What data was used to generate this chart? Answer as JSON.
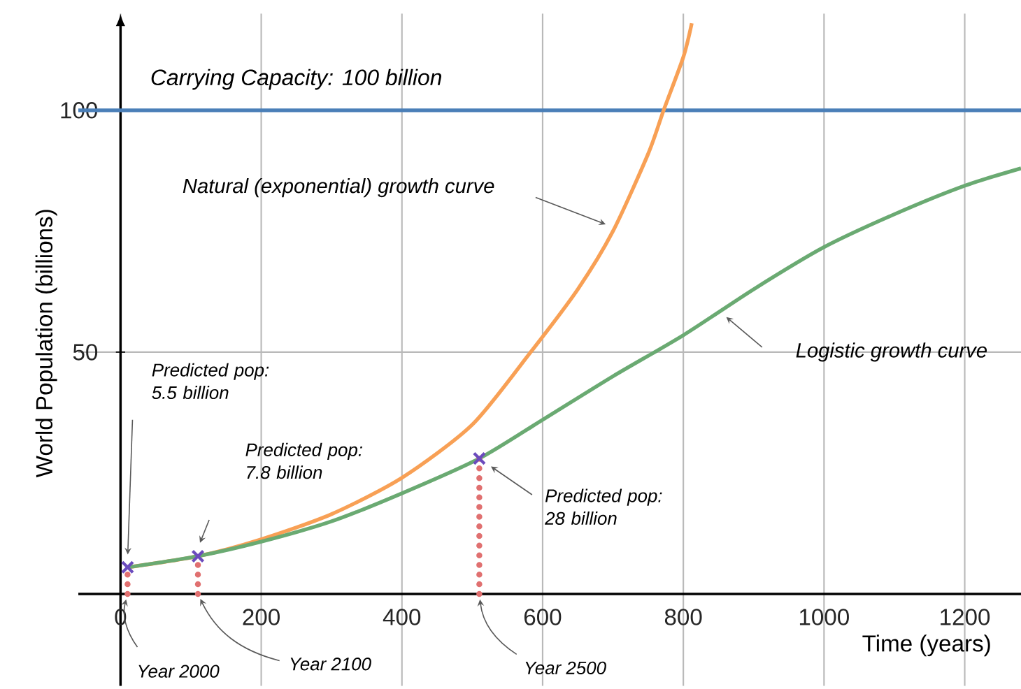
{
  "chart_data": {
    "type": "line",
    "xlabel": "Time (years)",
    "ylabel": "World Population (billions)",
    "xlim": [
      -60,
      1280
    ],
    "ylim": [
      -19,
      120
    ],
    "xticks": [
      0,
      200,
      400,
      600,
      800,
      1000,
      1200
    ],
    "yticks": [
      50,
      100
    ],
    "grid": true,
    "ref_lines": [
      {
        "axis": "y",
        "value": 100,
        "label": "Carrying Capacity: 100 billion",
        "color": "#4a7fb8"
      }
    ],
    "series": [
      {
        "type": "line",
        "color": "#f8a055",
        "x": [
          10,
          110,
          200,
          300,
          400,
          500,
          583,
          650,
          700,
          750,
          772,
          800,
          812
        ],
        "values": [
          5.5,
          7.8,
          11.3,
          16.5,
          24,
          35,
          50,
          63,
          75,
          91,
          100,
          111,
          118
        ]
      },
      {
        "type": "line",
        "color": "#6aaa72",
        "x": [
          10,
          110,
          200,
          300,
          400,
          510,
          600,
          700,
          800,
          900,
          1000,
          1100,
          1200,
          1280
        ],
        "values": [
          5.5,
          7.8,
          10.8,
          15,
          20.8,
          28,
          36,
          45,
          53.5,
          63,
          71.7,
          78.5,
          84.4,
          88
        ]
      },
      {
        "type": "lollipop",
        "color": "#e07070",
        "colors": [
          "#6b4bbd",
          "#6b4bbd",
          "#6b4bbd"
        ],
        "line_style": "dotted",
        "marker": "cross",
        "x": [
          10,
          110,
          510
        ],
        "values": [
          5.5,
          7.8,
          28
        ]
      }
    ],
    "annotations": [
      "Natural (exponential) growth curve",
      "Logistic growth curve",
      "Predicted pop: 5.5 billion",
      "Predicted pop: 7.8 billion",
      "Predicted pop: 28 billion",
      "Year 2000",
      "Year 2100",
      "Year 2500"
    ]
  }
}
